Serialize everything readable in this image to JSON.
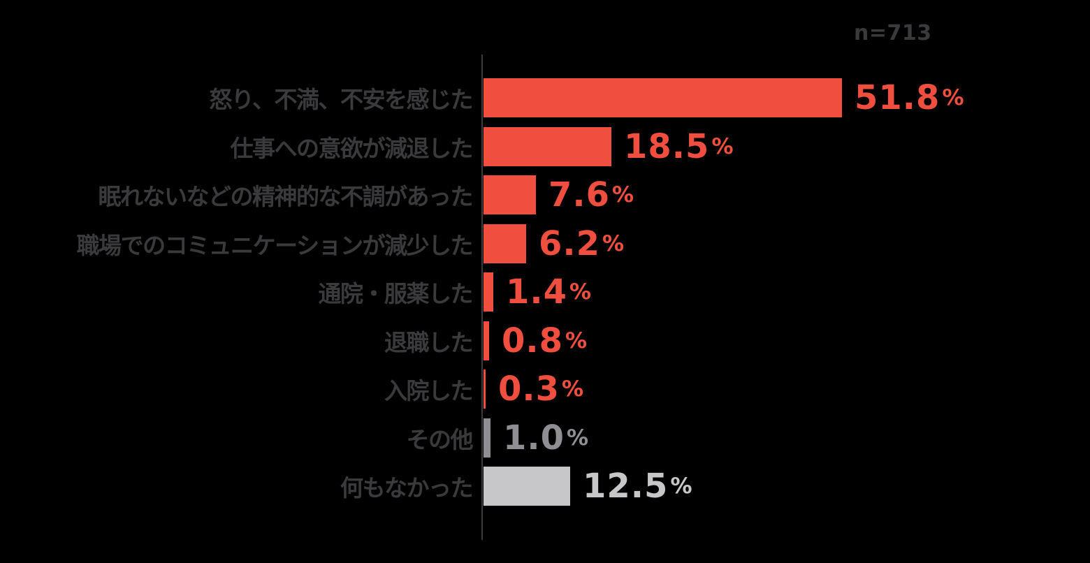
{
  "annotation": {
    "text": "n=713"
  },
  "colors": {
    "background": "#000000",
    "axis_line": "#3a3a3c",
    "category_text": "#3a3a3c",
    "bar_red": "#f04e3e",
    "bar_gray": "#8e8e93",
    "bar_light_gray": "#c7c7c9"
  },
  "chart_data": {
    "type": "bar",
    "orientation": "horizontal",
    "title": "",
    "annotation": "n=713",
    "unit": "%",
    "grid": false,
    "legend": false,
    "xlim": [
      0,
      52
    ],
    "categories": [
      "怒り、不満、不安を感じた",
      "仕事への意欲が減退した",
      "眠れないなどの精神的な不調があった",
      "職場でのコミュニケーションが減少した",
      "通院・服薬した",
      "退職した",
      "入院した",
      "その他",
      "何もなかった"
    ],
    "values": [
      51.8,
      18.5,
      7.6,
      6.2,
      1.4,
      0.8,
      0.3,
      1.0,
      12.5
    ],
    "value_labels": [
      "51.8",
      "18.5",
      "7.6",
      "6.2",
      "1.4",
      "0.8",
      "0.3",
      "1.0",
      "12.5"
    ],
    "bar_color_keys": [
      "bar_red",
      "bar_red",
      "bar_red",
      "bar_red",
      "bar_red",
      "bar_red",
      "bar_red",
      "bar_gray",
      "bar_light_gray"
    ]
  }
}
